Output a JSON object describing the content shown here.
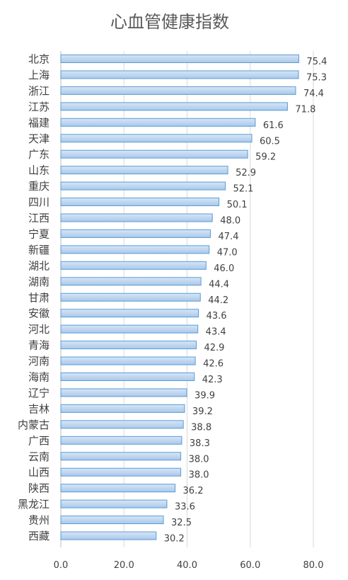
{
  "colors": {
    "bar_fill_top": "#d7e6f6",
    "bar_fill_bottom": "#a9c8ea",
    "bar_stroke": "#5b9bd5",
    "text": "#404040",
    "title": "#595959",
    "grid": "#d9d9d9"
  },
  "chart_data": {
    "type": "bar",
    "orientation": "horizontal",
    "title": "心血管健康指数",
    "xlabel": "",
    "ylabel": "",
    "xlim": [
      0,
      80
    ],
    "xticks": [
      "0.0",
      "20.0",
      "40.0",
      "60.0",
      "80.0"
    ],
    "grid": true,
    "legend": "none",
    "categories": [
      "北京",
      "上海",
      "浙江",
      "江苏",
      "福建",
      "天津",
      "广东",
      "山东",
      "重庆",
      "四川",
      "江西",
      "宁夏",
      "新疆",
      "湖北",
      "湖南",
      "甘肃",
      "安徽",
      "河北",
      "青海",
      "河南",
      "海南",
      "辽宁",
      "吉林",
      "内蒙古",
      "广西",
      "云南",
      "山西",
      "陕西",
      "黑龙江",
      "贵州",
      "西藏"
    ],
    "values": [
      75.4,
      75.3,
      74.4,
      71.8,
      61.6,
      60.5,
      59.2,
      52.9,
      52.1,
      50.1,
      48.0,
      47.4,
      47.0,
      46.0,
      44.4,
      44.2,
      43.6,
      43.4,
      42.9,
      42.6,
      42.3,
      39.9,
      39.2,
      38.8,
      38.3,
      38.0,
      38.0,
      36.2,
      33.6,
      32.5,
      30.2
    ],
    "value_labels": [
      "75.4",
      "75.3",
      "74.4",
      "71.8",
      "61.6",
      "60.5",
      "59.2",
      "52.9",
      "52.1",
      "50.1",
      "48.0",
      "47.4",
      "47.0",
      "46.0",
      "44.4",
      "44.2",
      "43.6",
      "43.4",
      "42.9",
      "42.6",
      "42.3",
      "39.9",
      "39.2",
      "38.8",
      "38.3",
      "38.0",
      "38.0",
      "36.2",
      "33.6",
      "32.5",
      "30.2"
    ]
  }
}
